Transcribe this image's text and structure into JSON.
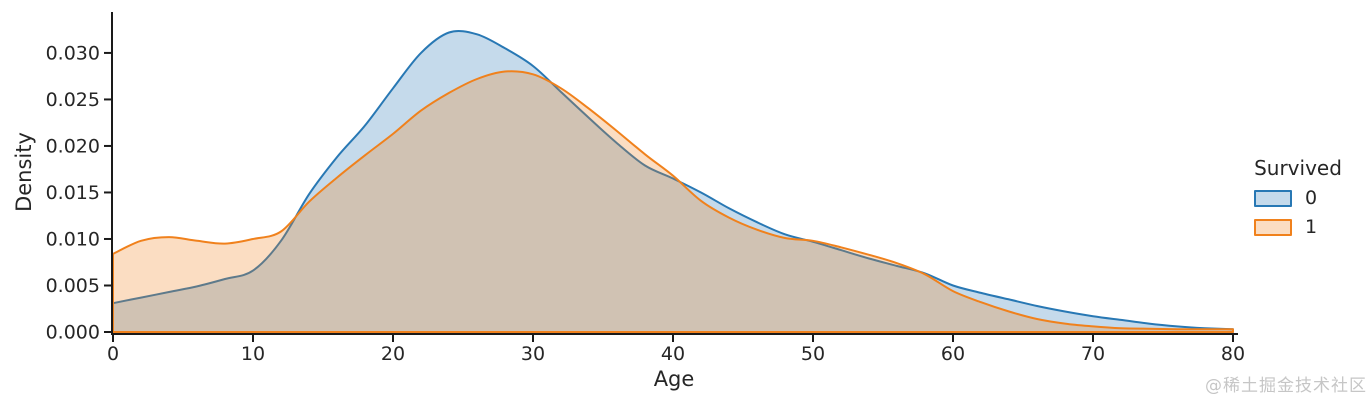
{
  "watermark": {
    "text": "@稀土掘金技术社区",
    "color": "#c6c6c6"
  },
  "chart_data": {
    "type": "area",
    "subtype": "kde-density",
    "title": "",
    "xlabel": "Age",
    "ylabel": "Density",
    "xlim": [
      0,
      80
    ],
    "ylim": [
      0,
      0.0344
    ],
    "grid": false,
    "axis_color": "#1a1a1a",
    "tick_label_color": "#262626",
    "x_ticks": [
      0,
      10,
      20,
      30,
      40,
      50,
      60,
      70,
      80
    ],
    "x_tick_labels": [
      "0",
      "10",
      "20",
      "30",
      "40",
      "50",
      "60",
      "70",
      "80"
    ],
    "y_ticks": [
      0,
      0.005,
      0.01,
      0.015,
      0.02,
      0.025,
      0.03
    ],
    "y_tick_labels": [
      "0.000",
      "0.005",
      "0.010",
      "0.015",
      "0.020",
      "0.025",
      "0.030"
    ],
    "legend": {
      "title": "Survived",
      "position": "center right",
      "entries": [
        {
          "label": "0",
          "color": "#2878b4"
        },
        {
          "label": "1",
          "color": "#f0811c"
        }
      ]
    },
    "x": [
      0,
      2,
      4,
      6,
      8,
      10,
      12,
      14,
      16,
      18,
      20,
      22,
      24,
      26,
      28,
      30,
      32,
      34,
      36,
      38,
      40,
      42,
      44,
      46,
      48,
      50,
      52,
      54,
      56,
      58,
      60,
      62,
      64,
      66,
      68,
      70,
      72,
      74,
      76,
      78,
      80
    ],
    "series": [
      {
        "name": "0",
        "color": "#2878b4",
        "fill_opacity": 0.27,
        "values": [
          0.0031,
          0.0037,
          0.0043,
          0.0049,
          0.0057,
          0.0066,
          0.0098,
          0.0148,
          0.0188,
          0.0222,
          0.0262,
          0.03,
          0.0322,
          0.032,
          0.0305,
          0.0286,
          0.0258,
          0.023,
          0.0203,
          0.0179,
          0.0165,
          0.015,
          0.0133,
          0.0118,
          0.0105,
          0.0097,
          0.0088,
          0.0079,
          0.0071,
          0.0063,
          0.005,
          0.0042,
          0.0035,
          0.0028,
          0.0022,
          0.0017,
          0.0013,
          0.0009,
          0.0006,
          0.0004,
          0.0003
        ]
      },
      {
        "name": "1",
        "color": "#f0811c",
        "fill_opacity": 0.27,
        "values": [
          0.0084,
          0.0098,
          0.0102,
          0.0098,
          0.0095,
          0.01,
          0.0108,
          0.014,
          0.0166,
          0.019,
          0.0213,
          0.0238,
          0.0257,
          0.0272,
          0.028,
          0.0277,
          0.0262,
          0.024,
          0.0216,
          0.0191,
          0.0168,
          0.0141,
          0.0123,
          0.011,
          0.0101,
          0.0098,
          0.0091,
          0.0083,
          0.0074,
          0.0062,
          0.0044,
          0.0032,
          0.0022,
          0.0014,
          0.0009,
          0.0006,
          0.0004,
          0.00035,
          0.0003,
          0.0003,
          0.0003
        ]
      }
    ]
  }
}
